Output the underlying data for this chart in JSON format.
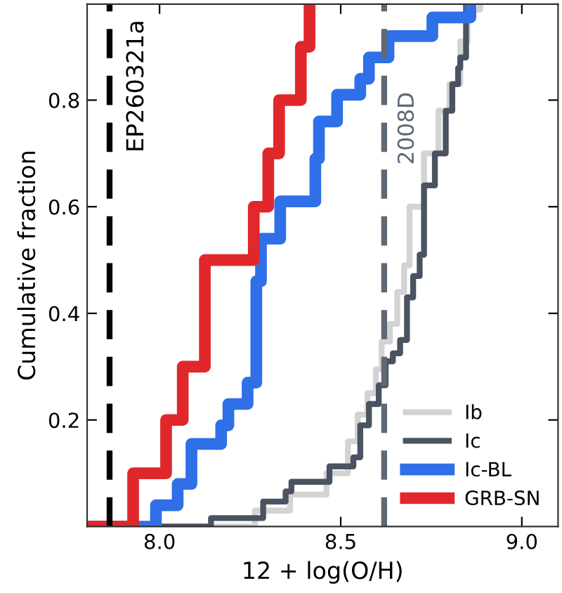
{
  "chart_data": {
    "type": "step",
    "xlabel": "12 + log(O/H)",
    "ylabel": "Cumulative fraction",
    "xlim": [
      7.8,
      9.1
    ],
    "ylim": [
      0,
      0.98
    ],
    "xticks": [
      {
        "value": 8.0,
        "label": "8.0"
      },
      {
        "value": 8.5,
        "label": "8.5"
      },
      {
        "value": 9.0,
        "label": "9.0"
      }
    ],
    "yticks": [
      0.2,
      0.4,
      0.6,
      0.8
    ],
    "grid": false,
    "legend": "bottom right",
    "series": [
      {
        "name": "Ib",
        "color": "#d3d3d3",
        "x": [
          7.8,
          8.263,
          8.36,
          8.461,
          8.52,
          8.547,
          8.574,
          8.597,
          8.613,
          8.636,
          8.656,
          8.675,
          8.69,
          8.73,
          8.77,
          8.8,
          8.83,
          8.85,
          8.885
        ],
        "values": [
          0,
          0.03,
          0.06,
          0.1,
          0.16,
          0.21,
          0.25,
          0.295,
          0.347,
          0.38,
          0.44,
          0.49,
          0.6,
          0.7,
          0.78,
          0.83,
          0.91,
          0.97,
          0.98
        ]
      },
      {
        "name": "Ic",
        "color": "#4a5361",
        "x": [
          7.8,
          8.142,
          8.286,
          8.348,
          8.364,
          8.469,
          8.535,
          8.554,
          8.578,
          8.605,
          8.624,
          8.644,
          8.664,
          8.683,
          8.7,
          8.718,
          8.73,
          8.76,
          8.79,
          8.808,
          8.824,
          8.83,
          8.846
        ],
        "values": [
          0,
          0.016,
          0.047,
          0.066,
          0.084,
          0.113,
          0.13,
          0.19,
          0.23,
          0.265,
          0.31,
          0.325,
          0.35,
          0.43,
          0.47,
          0.51,
          0.64,
          0.7,
          0.78,
          0.83,
          0.86,
          0.88,
          0.98
        ]
      },
      {
        "name": "Ic-BL",
        "color": "#2f6fe8",
        "x": [
          7.8,
          7.99,
          8.05,
          8.088,
          8.17,
          8.19,
          8.243,
          8.267,
          8.28,
          8.333,
          8.43,
          8.44,
          8.49,
          8.554,
          8.578,
          8.632,
          8.753,
          8.858
        ],
        "values": [
          0,
          0.04,
          0.08,
          0.155,
          0.19,
          0.23,
          0.27,
          0.46,
          0.54,
          0.61,
          0.69,
          0.76,
          0.81,
          0.84,
          0.88,
          0.92,
          0.955,
          0.98
        ]
      },
      {
        "name": "GRB-SN",
        "color": "#e0282b",
        "x": [
          7.8,
          7.927,
          8.018,
          8.064,
          8.125,
          8.26,
          8.3,
          8.33,
          8.39,
          8.414
        ],
        "values": [
          0,
          0.1,
          0.2,
          0.3,
          0.5,
          0.6,
          0.7,
          0.8,
          0.9,
          0.98
        ]
      }
    ],
    "ref_lines": [
      {
        "axis": "x",
        "value": 7.862,
        "label": "EP260321a",
        "color": "#000000",
        "line_style": "dashed"
      },
      {
        "axis": "x",
        "value": 8.62,
        "label": "2008D",
        "color": "#5f6875",
        "line_style": "dashed"
      }
    ]
  }
}
